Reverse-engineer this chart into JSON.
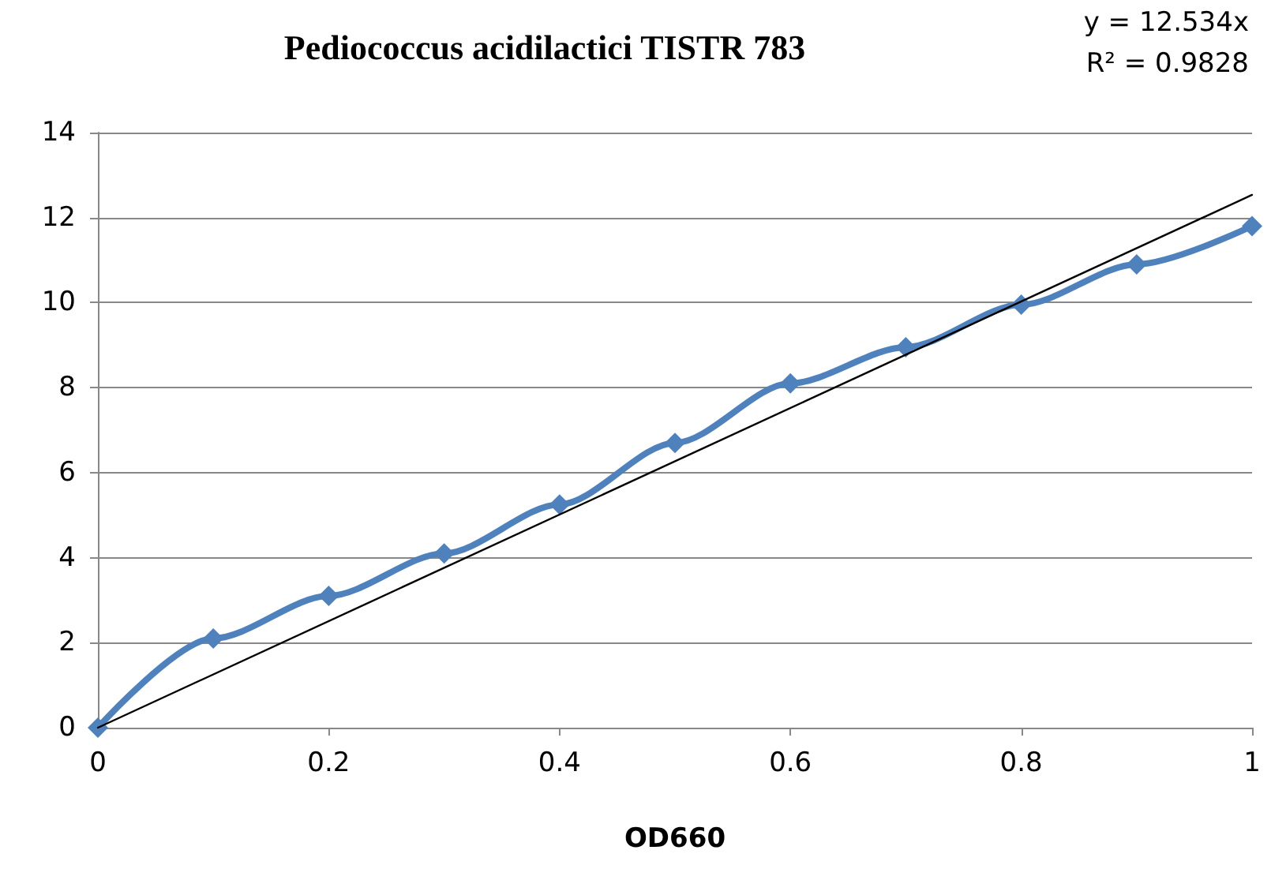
{
  "chart_data": {
    "type": "line",
    "title": "Pediococcus acidilactici TISTR 783",
    "xlabel": "OD660",
    "x": [
      0,
      0.1,
      0.2,
      0.3,
      0.4,
      0.5,
      0.6,
      0.7,
      0.8,
      0.9,
      1
    ],
    "series": [
      {
        "color": "#4f81bd",
        "values": [
          0,
          2.1,
          3.1,
          4.1,
          5.25,
          6.7,
          8.1,
          8.95,
          9.95,
          10.9,
          11.8
        ],
        "marker": "diamond"
      },
      {
        "type": "line",
        "color": "#000000",
        "x": [
          0,
          1
        ],
        "values": [
          0,
          12.534
        ],
        "marker": "none"
      }
    ],
    "annotations": [
      "y = 12.534x",
      "R² = 0.9828"
    ],
    "xlim": [
      0,
      1
    ],
    "xticks": [
      0,
      0.2,
      0.4,
      0.6,
      0.8,
      1
    ],
    "ylim": [
      0,
      14
    ],
    "yticks": [
      0,
      2,
      4,
      6,
      8,
      10,
      12,
      14
    ],
    "grid": "y"
  }
}
